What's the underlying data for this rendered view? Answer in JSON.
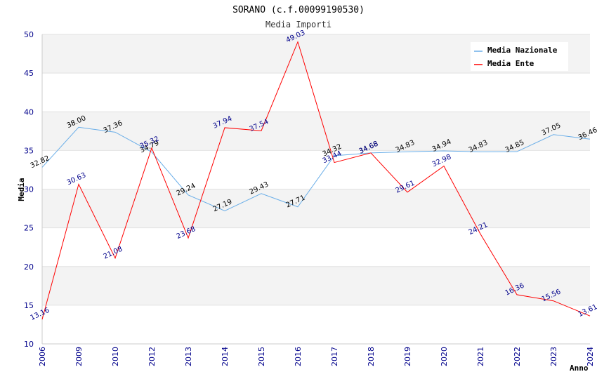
{
  "chart_data": {
    "type": "line",
    "title": "SORANO (c.f.00099190530)",
    "subtitle": "Media Importi",
    "xlabel": "Anno",
    "ylabel": "Media",
    "ylim": [
      10,
      50
    ],
    "yticks": [
      "10",
      "15",
      "20",
      "25",
      "30",
      "35",
      "40",
      "45",
      "50"
    ],
    "categories": [
      "2006",
      "2009",
      "2010",
      "2012",
      "2013",
      "2014",
      "2015",
      "2016",
      "2017",
      "2018",
      "2019",
      "2020",
      "2021",
      "2022",
      "2023",
      "2024"
    ],
    "legend_position": "top-right",
    "series": [
      {
        "name": "Media Nazionale",
        "color": "#6aaee8",
        "values": [
          32.82,
          38.0,
          37.36,
          34.79,
          29.24,
          27.19,
          29.43,
          27.71,
          34.32,
          34.68,
          34.83,
          34.94,
          34.83,
          34.85,
          37.05,
          36.46
        ],
        "labels": [
          "32.82",
          "38.00",
          "37.36",
          "34.79",
          "29.24",
          "27.19",
          "29.43",
          "27.71",
          "34.32",
          "34.68",
          "34.83",
          "34.94",
          "34.83",
          "34.85",
          "37.05",
          "36.46"
        ]
      },
      {
        "name": "Media Ente",
        "color": "#ff0000",
        "values": [
          13.16,
          30.63,
          21.08,
          35.32,
          23.68,
          37.94,
          37.54,
          49.03,
          33.44,
          34.68,
          29.61,
          32.98,
          24.21,
          16.36,
          15.56,
          13.61
        ],
        "labels": [
          "13.16",
          "30.63",
          "21.08",
          "35.32",
          "23.68",
          "37.94",
          "37.54",
          "49.03",
          "33.44",
          "34.68",
          "29.61",
          "32.98",
          "24.21",
          "16.36",
          "15.56",
          "13.61"
        ]
      }
    ]
  }
}
